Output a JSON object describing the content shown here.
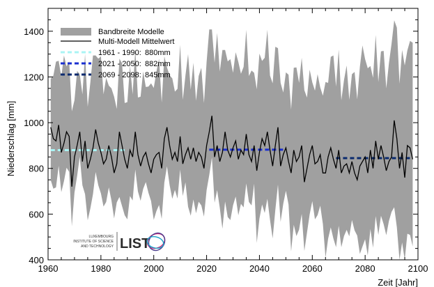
{
  "chart_data": {
    "type": "area",
    "xlabel": "Zeit [Jahr]",
    "ylabel": "Niederschlag [mm]",
    "xlim": [
      1960,
      2100
    ],
    "ylim": [
      400,
      1500
    ],
    "x_ticks": [
      1960,
      1980,
      2000,
      2020,
      2040,
      2060,
      2080,
      2100
    ],
    "y_ticks": [
      400,
      600,
      800,
      1000,
      1200,
      1400
    ],
    "grid": false,
    "legend_position": "top-left",
    "legend": {
      "band": "Bandbreite Modelle",
      "mean": "Multi-Modell Mittelwert",
      "periods": [
        {
          "label": "1961 - 1990:",
          "value_label": "880mm"
        },
        {
          "label": "2021 - 2050:",
          "value_label": "882mm"
        },
        {
          "label": "2069 - 2098:",
          "value_label": "845mm"
        }
      ]
    },
    "colors": {
      "band": "#a0a0a0",
      "mean": "#000000",
      "period1": "#aaf4f4",
      "period2": "#1a2fd0",
      "period3": "#0a2a6e"
    },
    "period_means": [
      {
        "start": 1961,
        "end": 1990,
        "value": 880
      },
      {
        "start": 2021,
        "end": 2050,
        "value": 882
      },
      {
        "start": 2069,
        "end": 2098,
        "value": 845
      }
    ],
    "band_range": [
      {
        "x": 1961,
        "min": 700,
        "max": 1130
      },
      {
        "x": 1965,
        "min": 720,
        "max": 1200
      },
      {
        "x": 1970,
        "min": 680,
        "max": 1150
      },
      {
        "x": 1975,
        "min": 710,
        "max": 1210
      },
      {
        "x": 1980,
        "min": 690,
        "max": 1220
      },
      {
        "x": 1985,
        "min": 620,
        "max": 1180
      },
      {
        "x": 1990,
        "min": 690,
        "max": 1160
      },
      {
        "x": 1995,
        "min": 700,
        "max": 1200
      },
      {
        "x": 2000,
        "min": 680,
        "max": 1230
      },
      {
        "x": 2005,
        "min": 700,
        "max": 1180
      },
      {
        "x": 2010,
        "min": 670,
        "max": 1200
      },
      {
        "x": 2015,
        "min": 690,
        "max": 1210
      },
      {
        "x": 2020,
        "min": 660,
        "max": 1230
      },
      {
        "x": 2025,
        "min": 600,
        "max": 1300
      },
      {
        "x": 2030,
        "min": 640,
        "max": 1250
      },
      {
        "x": 2035,
        "min": 610,
        "max": 1240
      },
      {
        "x": 2040,
        "min": 640,
        "max": 1260
      },
      {
        "x": 2045,
        "min": 560,
        "max": 1230
      },
      {
        "x": 2050,
        "min": 620,
        "max": 1210
      },
      {
        "x": 2055,
        "min": 590,
        "max": 1240
      },
      {
        "x": 2060,
        "min": 600,
        "max": 1210
      },
      {
        "x": 2065,
        "min": 580,
        "max": 1230
      },
      {
        "x": 2070,
        "min": 550,
        "max": 1280
      },
      {
        "x": 2075,
        "min": 570,
        "max": 1260
      },
      {
        "x": 2080,
        "min": 560,
        "max": 1330
      },
      {
        "x": 2085,
        "min": 530,
        "max": 1270
      },
      {
        "x": 2090,
        "min": 560,
        "max": 1300
      },
      {
        "x": 2095,
        "min": 500,
        "max": 1340
      },
      {
        "x": 2098,
        "min": 480,
        "max": 1330
      }
    ],
    "series": [
      {
        "name": "Multi-Modell Mittelwert",
        "x": [
          1961,
          1962,
          1963,
          1964,
          1965,
          1966,
          1967,
          1968,
          1969,
          1970,
          1971,
          1972,
          1973,
          1974,
          1975,
          1976,
          1977,
          1978,
          1979,
          1980,
          1981,
          1982,
          1983,
          1984,
          1985,
          1986,
          1987,
          1988,
          1989,
          1990,
          1991,
          1992,
          1993,
          1994,
          1995,
          1996,
          1997,
          1998,
          1999,
          2000,
          2001,
          2002,
          2003,
          2004,
          2005,
          2006,
          2007,
          2008,
          2009,
          2010,
          2011,
          2012,
          2013,
          2014,
          2015,
          2016,
          2017,
          2018,
          2019,
          2020,
          2021,
          2022,
          2023,
          2024,
          2025,
          2026,
          2027,
          2028,
          2029,
          2030,
          2031,
          2032,
          2033,
          2034,
          2035,
          2036,
          2037,
          2038,
          2039,
          2040,
          2041,
          2042,
          2043,
          2044,
          2045,
          2046,
          2047,
          2048,
          2049,
          2050,
          2051,
          2052,
          2053,
          2054,
          2055,
          2056,
          2057,
          2058,
          2059,
          2060,
          2061,
          2062,
          2063,
          2064,
          2065,
          2066,
          2067,
          2068,
          2069,
          2070,
          2071,
          2072,
          2073,
          2074,
          2075,
          2076,
          2077,
          2078,
          2079,
          2080,
          2081,
          2082,
          2083,
          2084,
          2085,
          2086,
          2087,
          2088,
          2089,
          2090,
          2091,
          2092,
          2093,
          2094,
          2095,
          2096,
          2097,
          2098
        ],
        "values": [
          980,
          930,
          920,
          990,
          870,
          910,
          960,
          940,
          720,
          850,
          900,
          960,
          830,
          920,
          800,
          840,
          890,
          970,
          910,
          870,
          820,
          840,
          900,
          850,
          780,
          820,
          960,
          900,
          840,
          800,
          880,
          850,
          960,
          860,
          810,
          850,
          870,
          820,
          780,
          840,
          860,
          870,
          800,
          930,
          980,
          900,
          840,
          870,
          830,
          940,
          820,
          860,
          890,
          840,
          890,
          830,
          870,
          850,
          800,
          900,
          960,
          1030,
          850,
          900,
          830,
          870,
          960,
          880,
          850,
          890,
          920,
          840,
          880,
          860,
          950,
          860,
          830,
          900,
          790,
          870,
          930,
          900,
          960,
          880,
          810,
          900,
          980,
          810,
          860,
          890,
          830,
          780,
          880,
          830,
          850,
          900,
          740,
          800,
          860,
          900,
          820,
          830,
          860,
          780,
          780,
          850,
          890,
          840,
          800,
          880,
          780,
          810,
          820,
          780,
          830,
          780,
          750,
          810,
          830,
          850,
          780,
          880,
          800,
          920,
          840,
          900,
          850,
          790,
          830,
          850,
          1010,
          930,
          800,
          870,
          760,
          900,
          890,
          840
        ]
      }
    ]
  },
  "logo": {
    "line1": "LUXEMBOURG",
    "line2": "INSTITUTE OF SCIENCE",
    "line3": "AND TECHNOLOGY",
    "wordmark": "LIST"
  }
}
